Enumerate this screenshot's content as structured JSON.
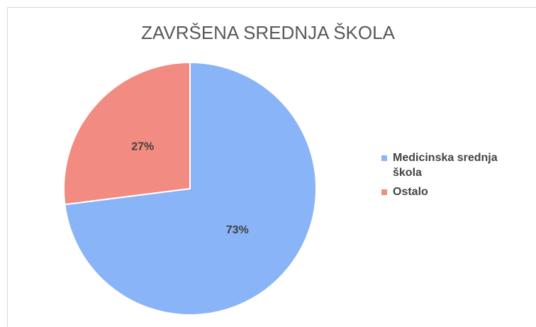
{
  "chart_data": {
    "type": "pie",
    "title": "ZAVRŠENA SREDNJA ŠKOLA",
    "categories": [
      "Medicinska srednja škola",
      "Ostalo"
    ],
    "values": [
      73,
      27
    ],
    "value_labels": [
      "73%",
      "27%"
    ],
    "colors": [
      "#8ab4f8",
      "#f28b82"
    ],
    "legend": "right"
  }
}
